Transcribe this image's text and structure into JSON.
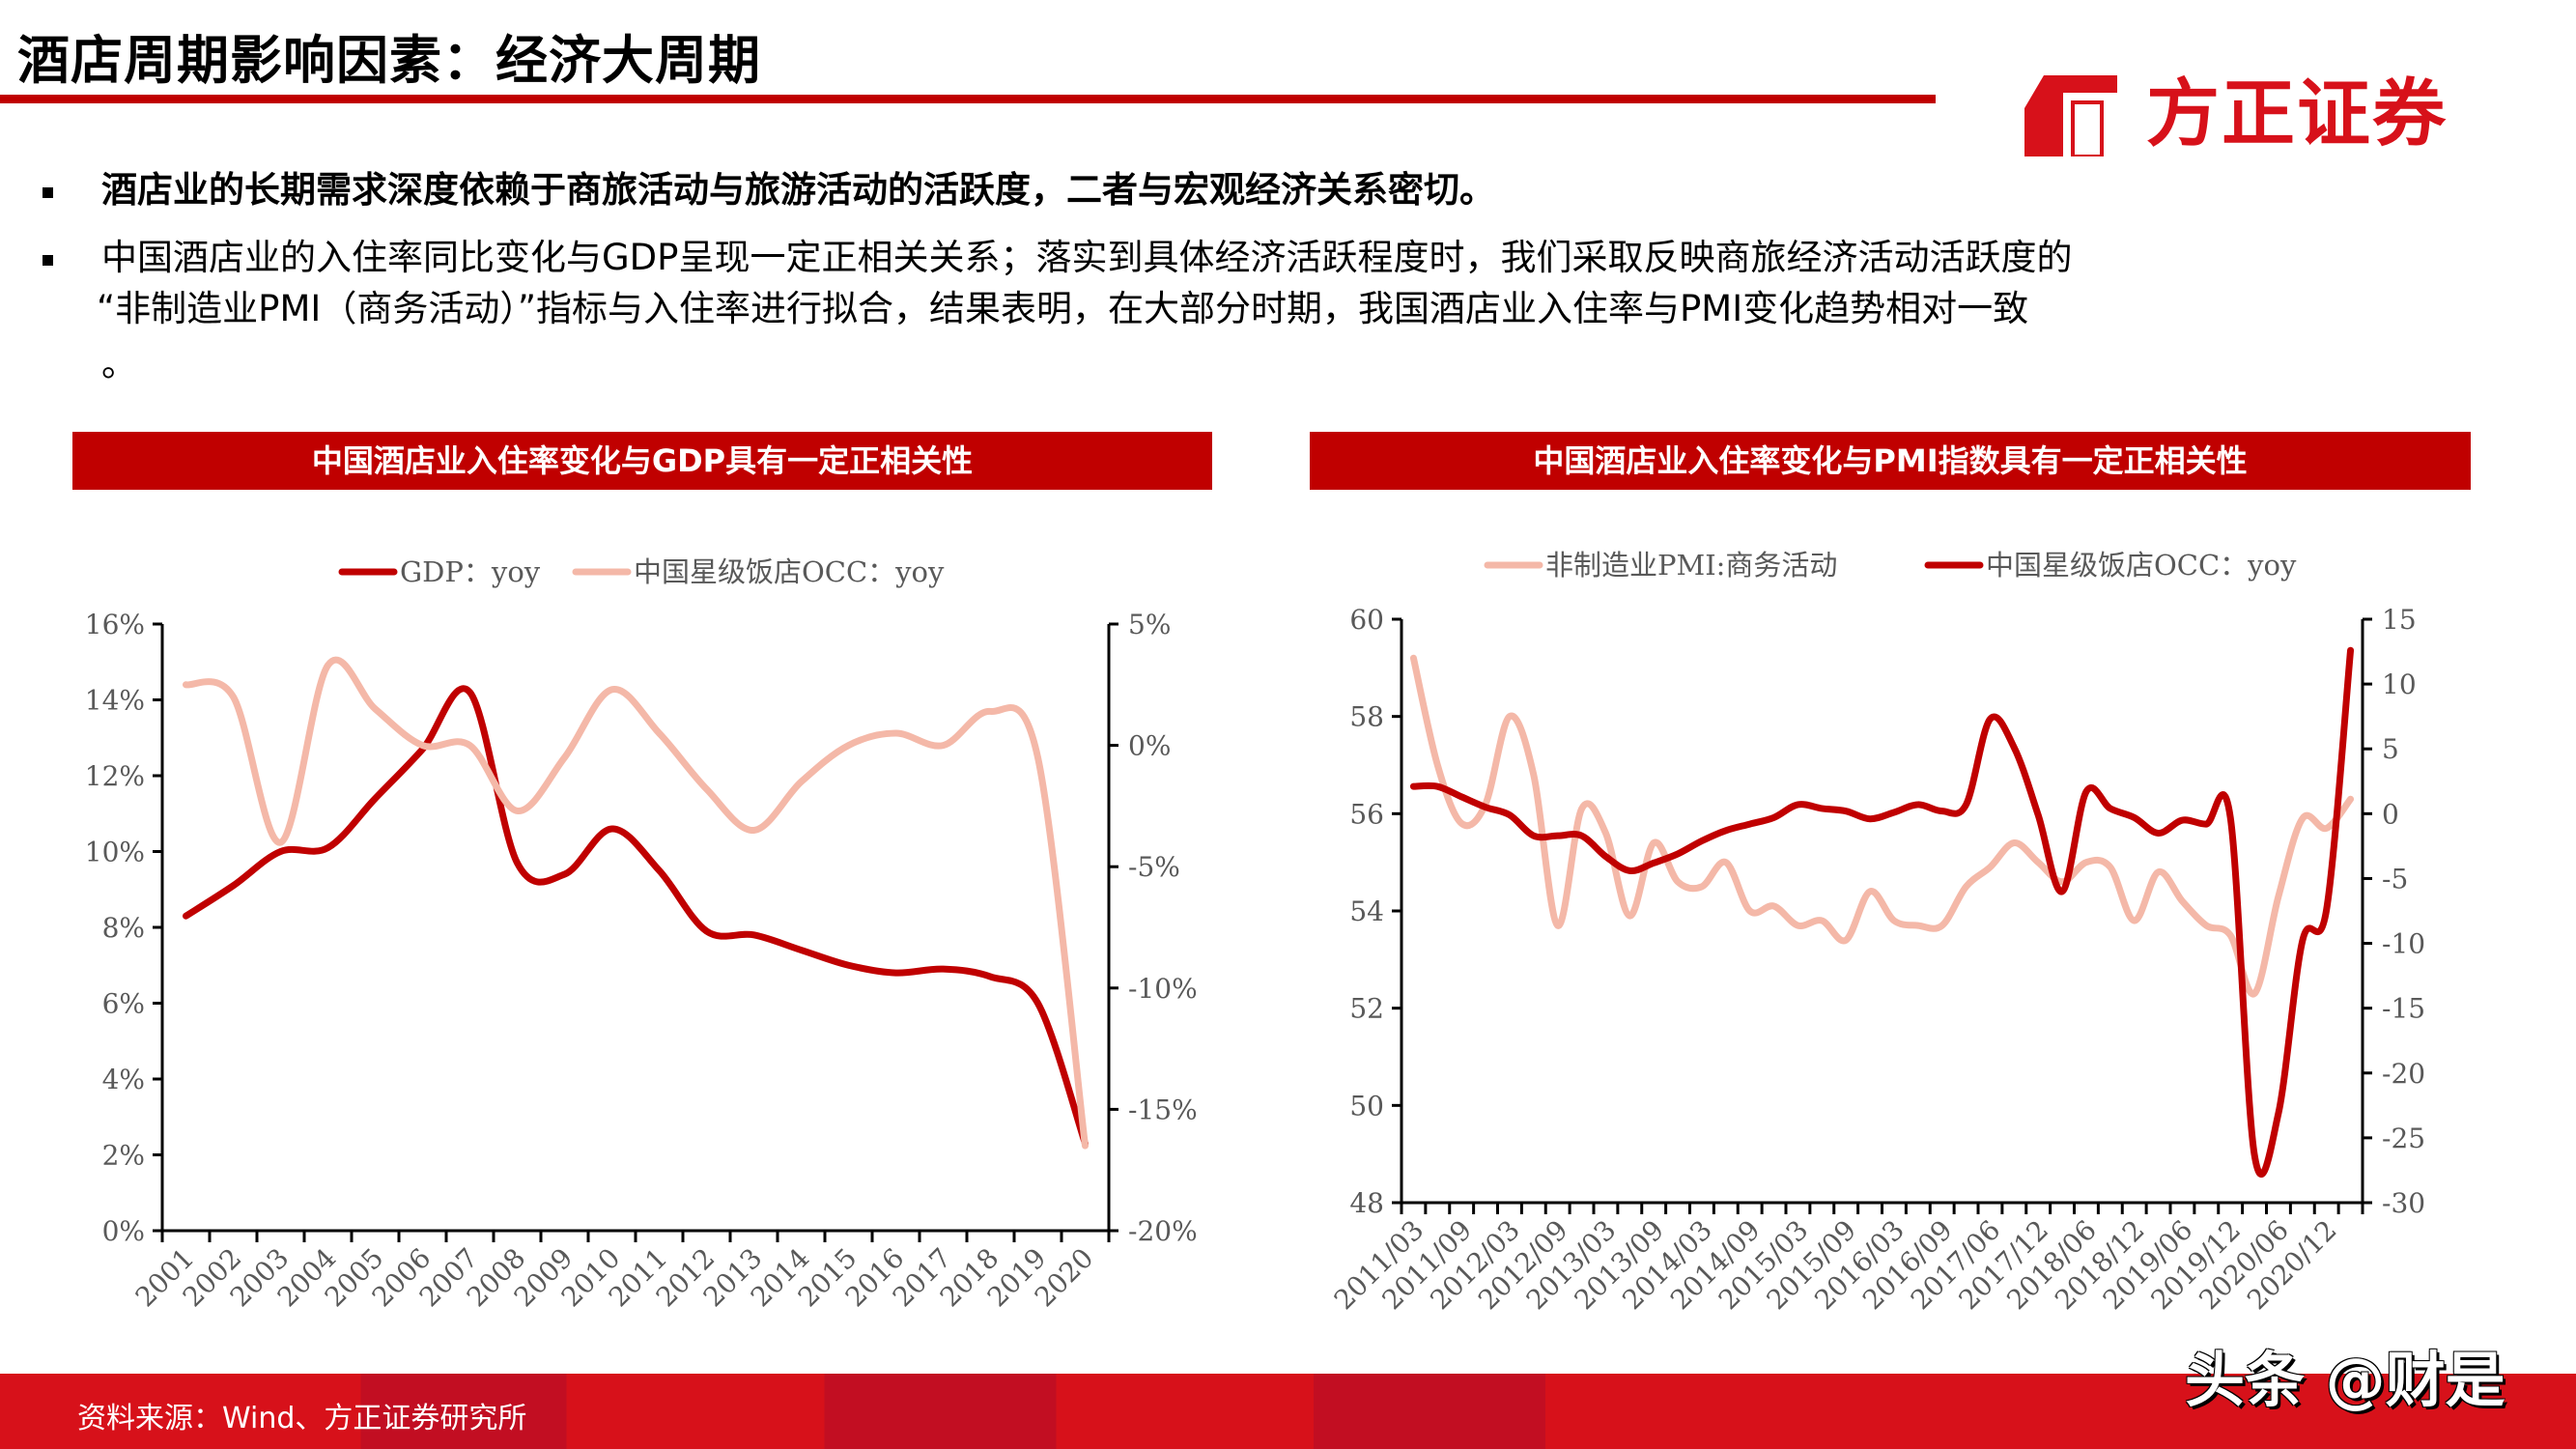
{
  "header": {
    "title": "酒店周期影响因素：经济大周期",
    "logo_text": "方正证券"
  },
  "bullets": [
    "酒店业的长期需求深度依赖于商旅活动与旅游活动的活跃度，二者与宏观经济关系密切。",
    "中国酒店业的入住率同比变化与GDP呈现一定正相关关系；落实到具体经济活跃程度时，我们采取反映商旅经济活动活跃度的",
    "“非制造业PMI（商务活动）”指标与入住率进行拟合，结果表明，在大部分时期，我国酒店业入住率与PMI变化趋势相对一致",
    "。"
  ],
  "footer": {
    "source": "资料来源：Wind、方正证券研究所",
    "watermark": "头条 @财是"
  },
  "colors": {
    "dark_red": "#C00000",
    "salmon": "#F4B8A8",
    "footer_red": "#D7111A"
  },
  "chart_data": [
    {
      "type": "line",
      "title": "中国酒店业入住率变化与GDP具有一定正相关性",
      "legend_position": "top-center",
      "categories": [
        "2001",
        "2002",
        "2003",
        "2004",
        "2005",
        "2006",
        "2007",
        "2008",
        "2009",
        "2010",
        "2011",
        "2012",
        "2013",
        "2014",
        "2015",
        "2016",
        "2017",
        "2018",
        "2019",
        "2020"
      ],
      "y_left": {
        "min": 0,
        "max": 16,
        "ticks": [
          "0%",
          "2%",
          "4%",
          "6%",
          "8%",
          "10%",
          "12%",
          "14%",
          "16%"
        ]
      },
      "y_right": {
        "min": -20,
        "max": 5,
        "ticks": [
          "-20%",
          "-15%",
          "-10%",
          "-5%",
          "0%",
          "5%"
        ]
      },
      "series": [
        {
          "name": "GDP：yoy",
          "axis": "left",
          "color": "#C00000",
          "values": [
            8.3,
            9.1,
            10.0,
            10.1,
            11.4,
            12.7,
            14.2,
            9.7,
            9.4,
            10.6,
            9.5,
            7.9,
            7.8,
            7.4,
            7.0,
            6.8,
            6.9,
            6.7,
            6.0,
            2.3
          ]
        },
        {
          "name": "中国星级饭店OCC：yoy",
          "axis": "right",
          "color": "#F4B8A8",
          "values": [
            2.5,
            2.0,
            -4.0,
            3.3,
            1.5,
            0.0,
            0.0,
            -2.7,
            -0.5,
            2.3,
            0.5,
            -1.8,
            -3.5,
            -1.5,
            0.0,
            0.5,
            0.0,
            1.4,
            -0.5,
            -16.5
          ]
        }
      ]
    },
    {
      "type": "line",
      "title": "中国酒店业入住率变化与PMI指数具有一定正相关性",
      "legend_position": "top-center",
      "x_labels": [
        "2011/03",
        "2011/09",
        "2012/03",
        "2012/09",
        "2013/03",
        "2013/09",
        "2014/03",
        "2014/09",
        "2015/03",
        "2015/09",
        "2016/03",
        "2016/09",
        "2017/06",
        "2017/12",
        "2018/06",
        "2018/12",
        "2019/06",
        "2019/12",
        "2020/06",
        "2020/12"
      ],
      "y_left": {
        "min": 48,
        "max": 60,
        "ticks": [
          "48",
          "50",
          "52",
          "54",
          "56",
          "58",
          "60"
        ]
      },
      "y_right": {
        "min": -30,
        "max": 15,
        "ticks": [
          "-30",
          "-25",
          "-20",
          "-15",
          "-10",
          "-5",
          "0",
          "5",
          "10",
          "15"
        ]
      },
      "series": [
        {
          "name": "非制造业PMI:商务活动",
          "axis": "left",
          "color": "#F4B8A8",
          "values": [
            59.2,
            57.0,
            55.8,
            56.2,
            58.0,
            56.8,
            53.7,
            56.1,
            55.6,
            53.9,
            55.4,
            54.6,
            54.5,
            55.0,
            54.0,
            54.1,
            53.7,
            53.8,
            53.4,
            54.4,
            53.8,
            53.7,
            53.7,
            54.5,
            54.9,
            55.4,
            55.0,
            54.6,
            55.0,
            54.9,
            53.8,
            54.8,
            54.2,
            53.7,
            53.5,
            52.3,
            54.3,
            55.9,
            55.7,
            56.3
          ]
        },
        {
          "name": "中国星级饭店OCC：yoy",
          "axis": "right",
          "color": "#C00000",
          "values": [
            2.1,
            2.1,
            1.3,
            0.5,
            -0.1,
            -1.7,
            -1.7,
            -1.7,
            -3.3,
            -4.4,
            -3.8,
            -3.1,
            -2.1,
            -1.3,
            -0.8,
            -0.3,
            0.7,
            0.4,
            0.2,
            -0.4,
            0.1,
            0.7,
            0.2,
            0.7,
            7.3,
            5.1,
            -0.1,
            -6.0,
            1.7,
            0.4,
            -0.3,
            -1.5,
            -0.5,
            -0.8,
            -0.3,
            -26.3,
            -23.1,
            -9.8,
            -7.4,
            12.6
          ]
        }
      ]
    }
  ]
}
